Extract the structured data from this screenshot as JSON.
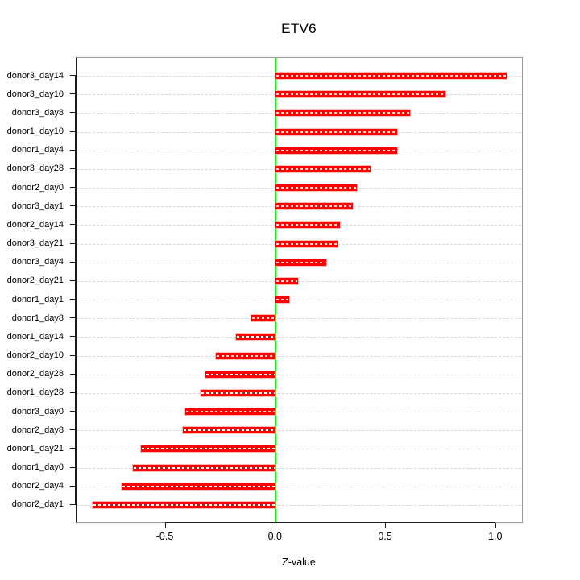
{
  "chart_data": {
    "type": "bar",
    "orientation": "horizontal",
    "title": "ETV6",
    "xlabel": "Z-value",
    "categories": [
      "donor3_day14",
      "donor3_day10",
      "donor3_day8",
      "donor1_day10",
      "donor1_day4",
      "donor3_day28",
      "donor2_day0",
      "donor3_day1",
      "donor2_day14",
      "donor3_day21",
      "donor3_day4",
      "donor2_day21",
      "donor1_day1",
      "donor1_day8",
      "donor1_day14",
      "donor2_day10",
      "donor2_day28",
      "donor1_day28",
      "donor3_day0",
      "donor2_day8",
      "donor1_day21",
      "donor1_day0",
      "donor2_day4",
      "donor2_day1"
    ],
    "values": [
      1.05,
      0.77,
      0.61,
      0.55,
      0.55,
      0.43,
      0.37,
      0.35,
      0.29,
      0.28,
      0.23,
      0.1,
      0.06,
      -0.11,
      -0.18,
      -0.27,
      -0.32,
      -0.34,
      -0.41,
      -0.42,
      -0.61,
      -0.65,
      -0.7,
      -0.83
    ],
    "x_ticks": [
      {
        "value": -0.5,
        "label": "-0.5"
      },
      {
        "value": 0.0,
        "label": "0.0"
      },
      {
        "value": 0.5,
        "label": "0.5"
      },
      {
        "value": 1.0,
        "label": "1.0"
      }
    ],
    "xlim": [
      -0.9,
      1.12
    ],
    "zero_line_value": 0.0,
    "grid": "dashed-horizontal",
    "legend": null,
    "colors": {
      "bar": "#ff0000",
      "zero_line": "#00ff00",
      "gridline": "#d8d8d8",
      "box": "#9a9a9a",
      "axis": "#1a1a1a",
      "text": "#000000"
    }
  }
}
